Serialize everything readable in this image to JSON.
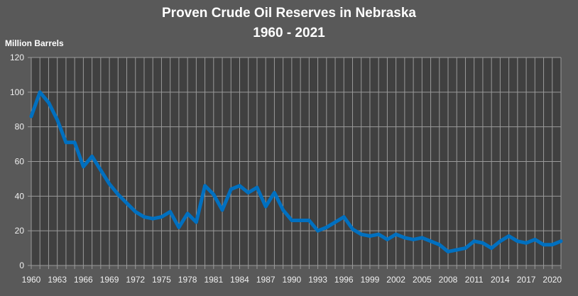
{
  "chart_data": {
    "type": "line",
    "title": "Proven Crude Oil Reserves in Nebraska",
    "subtitle": "1960 - 2021",
    "xlabel": "",
    "ylabel": "Million Barrels",
    "ylim": [
      0,
      120
    ],
    "yticks": [
      0,
      20,
      40,
      60,
      80,
      100,
      120
    ],
    "xlim": [
      1960,
      2021
    ],
    "xticks": [
      1960,
      1963,
      1966,
      1969,
      1972,
      1975,
      1978,
      1981,
      1984,
      1987,
      1990,
      1993,
      1996,
      1999,
      2002,
      2005,
      2008,
      2011,
      2014,
      2017,
      2020
    ],
    "grid": true,
    "legend": "none",
    "colors": {
      "line": "#0070C0",
      "plot_bg": "#404040",
      "bg": "#595959",
      "grid": "#9a9a9a"
    },
    "x": [
      1960,
      1961,
      1962,
      1963,
      1964,
      1965,
      1966,
      1967,
      1968,
      1969,
      1970,
      1971,
      1972,
      1973,
      1974,
      1975,
      1976,
      1977,
      1978,
      1979,
      1980,
      1981,
      1982,
      1983,
      1984,
      1985,
      1986,
      1987,
      1988,
      1989,
      1990,
      1991,
      1992,
      1993,
      1994,
      1995,
      1996,
      1997,
      1998,
      1999,
      2000,
      2001,
      2002,
      2003,
      2004,
      2005,
      2006,
      2007,
      2008,
      2009,
      2010,
      2011,
      2012,
      2013,
      2014,
      2015,
      2016,
      2017,
      2018,
      2019,
      2020,
      2021
    ],
    "values": [
      86,
      100,
      94,
      84,
      71,
      71,
      57,
      63,
      55,
      47,
      41,
      36,
      31,
      28,
      27,
      28,
      31,
      22,
      30,
      25,
      46,
      41,
      32,
      44,
      46,
      42,
      45,
      34,
      42,
      32,
      26,
      26,
      26,
      20,
      22,
      25,
      28,
      21,
      18,
      17,
      18,
      15,
      18,
      16,
      15,
      16,
      14,
      12,
      8,
      9,
      10,
      14,
      13,
      10,
      14,
      17,
      14,
      13,
      15,
      12,
      12,
      14
    ]
  }
}
